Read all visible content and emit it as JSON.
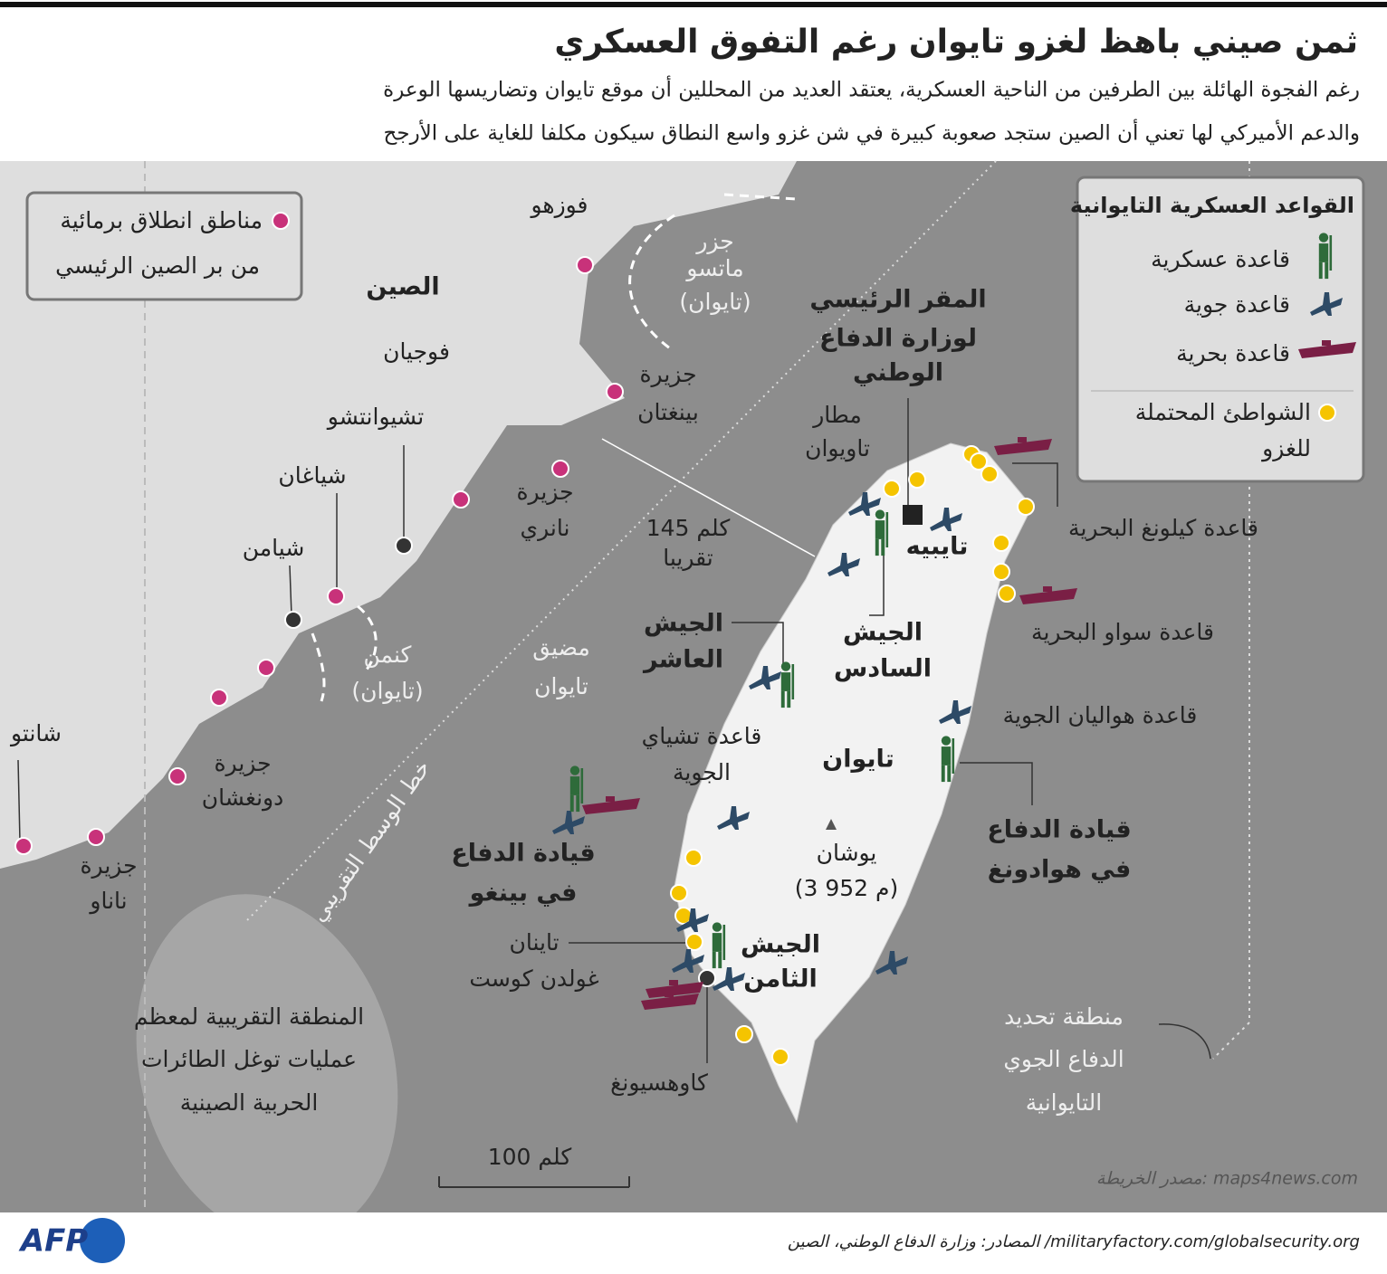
{
  "header": {
    "title": "ثمن صيني باهظ لغزو تايوان رغم التفوق العسكري",
    "subtitle": [
      "رغم الفجوة الهائلة بين الطرفين من الناحية العسكرية، يعتقد العديد من المحللين أن موقع تايوان وتضاريسها الوعرة",
      "والدعم الأميركي لها تعني أن الصين ستجد صعوبة كبيرة في شن غزو واسع النطاق سيكون مكلفا للغاية على الأرجح"
    ]
  },
  "legend_launch": [
    "مناطق انطلاق برمائية",
    "من بر الصين الرئيسي"
  ],
  "legend_bases": {
    "title": "القواعد العسكرية التايوانية",
    "items": [
      [
        "قاعدة عسكرية"
      ],
      [
        "قاعدة جوية"
      ],
      [
        "قاعدة بحرية"
      ],
      [
        "الشواطئ المحتملة",
        "للغزو"
      ]
    ]
  },
  "labels": [
    [
      "فوزهو"
    ],
    [
      "جزر",
      "ماتسو",
      "(تايوان)"
    ],
    [
      "الصين"
    ],
    [
      "فوجيان"
    ],
    [
      "جزيرة",
      "بينغتان"
    ],
    [
      "تشيوانتشو"
    ],
    [
      "شياغان"
    ],
    [
      "جزيرة",
      "نانري"
    ],
    [
      "شيامن"
    ],
    [
      "كنمن",
      "(تايوان)"
    ],
    [
      "مضيق",
      "تايوان"
    ],
    [
      "145 كلم",
      "تقريبا"
    ],
    [
      "خط الوسط التقريبي"
    ],
    [
      "شانتو"
    ],
    [
      "جزيرة",
      "دونغشان"
    ],
    [
      "جزيرة",
      "ناناو"
    ],
    [
      "المقر الرئيسي",
      "لوزارة الدفاع",
      "الوطني"
    ],
    [
      "مطار",
      "تاويوان"
    ],
    [
      "تايبيه"
    ],
    [
      "قاعدة كيلونغ البحرية"
    ],
    [
      "الجيش",
      "العاشر"
    ],
    [
      "الجيش",
      "السادس"
    ],
    [
      "قاعدة سواو البحرية"
    ],
    [
      "قاعدة هواليان الجوية"
    ],
    [
      "قاعدة تشياي",
      "الجوية"
    ],
    [
      "تايوان"
    ],
    [
      "قيادة الدفاع",
      "في هوادونغ"
    ],
    [
      "قيادة الدفاع",
      "في بينغو"
    ],
    [
      "يوشان",
      "(3 952 م)"
    ],
    [
      "تاينان",
      "غولدن كوست"
    ],
    [
      "الجيش",
      "الثامن"
    ],
    [
      "المنطقة التقريبية لمعظم",
      "عمليات توغل الطائرات",
      "الحربية الصينية"
    ],
    [
      "كاوهسيونغ"
    ],
    [
      "منطقة تحديد",
      "الدفاع الجوي",
      "التايوانية"
    ],
    [
      "100 كلم"
    ]
  ],
  "footer": {
    "map_source": "مصدر الخريطة: maps4news.com",
    "sources": "المصادر: وزارة الدفاع الوطني، الصين /militaryfactory.com/globalsecurity.org",
    "logo": "AFP"
  }
}
